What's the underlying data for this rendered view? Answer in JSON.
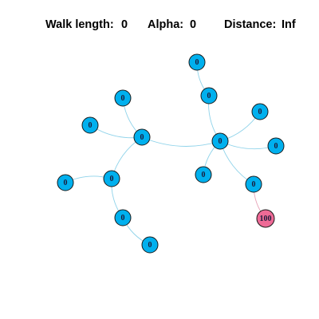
{
  "header": {
    "walk_length_label": "Walk length:",
    "walk_length_value": "0",
    "alpha_label": "Alpha:",
    "alpha_value": "0",
    "distance_label": "Distance:",
    "distance_value": "Inf"
  },
  "colors": {
    "node_default": "#00b0ee",
    "node_target": "#ee6a96",
    "edge": "#8fd3ea",
    "edge_target": "#e7a3b8"
  },
  "nodes": [
    {
      "id": "n1",
      "label": "0",
      "color": "default"
    },
    {
      "id": "n2",
      "label": "0",
      "color": "default"
    },
    {
      "id": "n3",
      "label": "0",
      "color": "default"
    },
    {
      "id": "n4",
      "label": "0",
      "color": "default"
    },
    {
      "id": "n5",
      "label": "0",
      "color": "default"
    },
    {
      "id": "n6",
      "label": "0",
      "color": "default"
    },
    {
      "id": "n7",
      "label": "0",
      "color": "default"
    },
    {
      "id": "n8",
      "label": "0",
      "color": "default"
    },
    {
      "id": "n9",
      "label": "0",
      "color": "default"
    },
    {
      "id": "n10",
      "label": "0",
      "color": "default"
    },
    {
      "id": "n11",
      "label": "0",
      "color": "default"
    },
    {
      "id": "n12",
      "label": "0",
      "color": "default"
    },
    {
      "id": "n13",
      "label": "0",
      "color": "default"
    },
    {
      "id": "n14",
      "label": "0",
      "color": "default"
    },
    {
      "id": "n15",
      "label": "100",
      "color": "target"
    }
  ],
  "edges": [
    [
      "n1",
      "n2"
    ],
    [
      "n2",
      "n5"
    ],
    [
      "n3",
      "n5"
    ],
    [
      "n4",
      "n5"
    ],
    [
      "n5",
      "n6"
    ],
    [
      "n6",
      "n7"
    ],
    [
      "n6",
      "n8"
    ],
    [
      "n6",
      "n9"
    ],
    [
      "n6",
      "n10"
    ],
    [
      "n6",
      "n11"
    ],
    [
      "n5",
      "n12"
    ],
    [
      "n12",
      "n13"
    ],
    [
      "n12",
      "n14"
    ],
    [
      "n14",
      "n3"
    ],
    [
      "n11",
      "n15"
    ]
  ]
}
